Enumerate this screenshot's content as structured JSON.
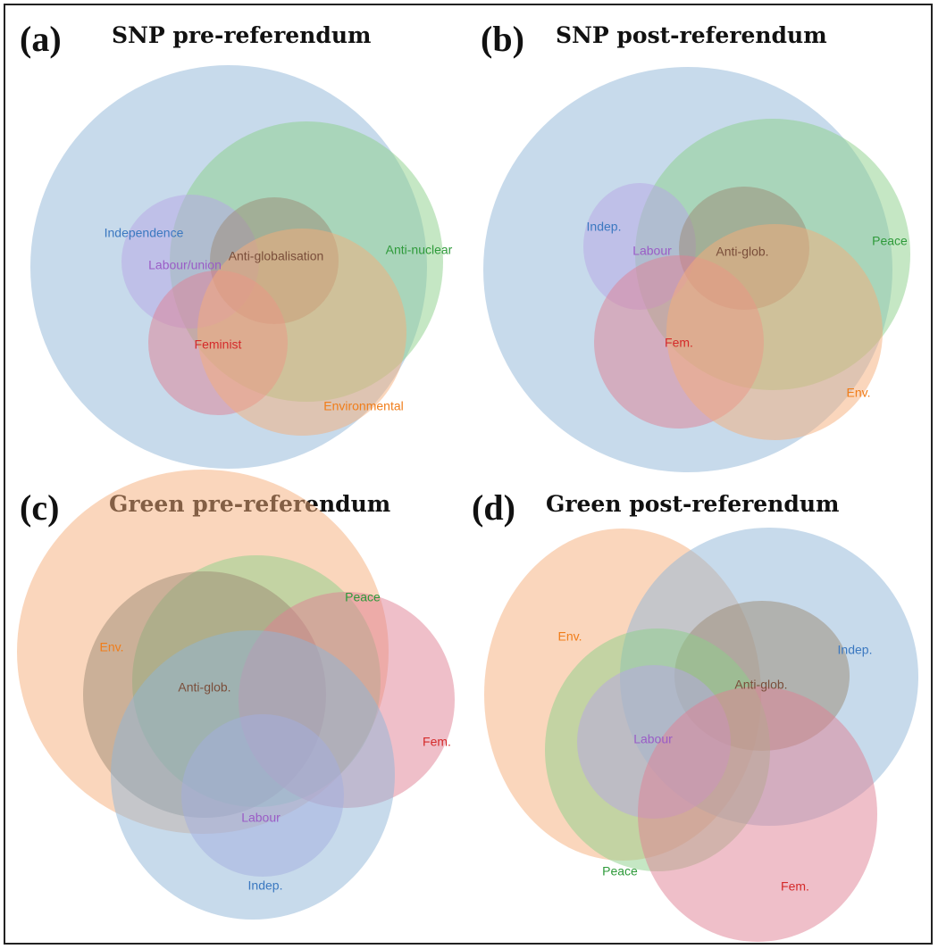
{
  "colors": {
    "blue": "#8fb6d8",
    "green": "#8ccf8a",
    "purple": "#b7a6e6",
    "brown": "#9b8a74",
    "red": "#e07f93",
    "orange": "#f5ae7a",
    "label_blue": "#3b78c0",
    "label_green": "#2e9a3a",
    "label_purple": "#9a5cc6",
    "label_brown": "#7a4e3a",
    "label_red": "#d42a2a",
    "label_orange": "#f07d1a"
  },
  "panels": [
    {
      "letter": "(a)",
      "title": "SNP pre-referendum",
      "sets": [
        {
          "key": "blue",
          "label": "Independence"
        },
        {
          "key": "green",
          "label": "Anti-nuclear"
        },
        {
          "key": "purple",
          "label": "Labour/union"
        },
        {
          "key": "brown",
          "label": "Anti-globalisation"
        },
        {
          "key": "red",
          "label": "Feminist"
        },
        {
          "key": "orange",
          "label": "Environmental"
        }
      ]
    },
    {
      "letter": "(b)",
      "title": "SNP post-referendum",
      "sets": [
        {
          "key": "blue",
          "label": "Indep."
        },
        {
          "key": "green",
          "label": "Peace"
        },
        {
          "key": "purple",
          "label": "Labour"
        },
        {
          "key": "brown",
          "label": "Anti-glob."
        },
        {
          "key": "red",
          "label": "Fem."
        },
        {
          "key": "orange",
          "label": "Env."
        }
      ]
    },
    {
      "letter": "(c)",
      "title": "Green pre-referendum",
      "sets": [
        {
          "key": "orange",
          "label": "Env."
        },
        {
          "key": "green",
          "label": "Peace"
        },
        {
          "key": "brown",
          "label": "Anti-glob."
        },
        {
          "key": "red",
          "label": "Fem."
        },
        {
          "key": "purple",
          "label": "Labour"
        },
        {
          "key": "blue",
          "label": "Indep."
        }
      ]
    },
    {
      "letter": "(d)",
      "title": "Green post-referendum",
      "sets": [
        {
          "key": "orange",
          "label": "Env."
        },
        {
          "key": "blue",
          "label": "Indep."
        },
        {
          "key": "brown",
          "label": "Anti-glob."
        },
        {
          "key": "green",
          "label": "Peace"
        },
        {
          "key": "purple",
          "label": "Labour"
        },
        {
          "key": "red",
          "label": "Fem."
        }
      ]
    }
  ]
}
